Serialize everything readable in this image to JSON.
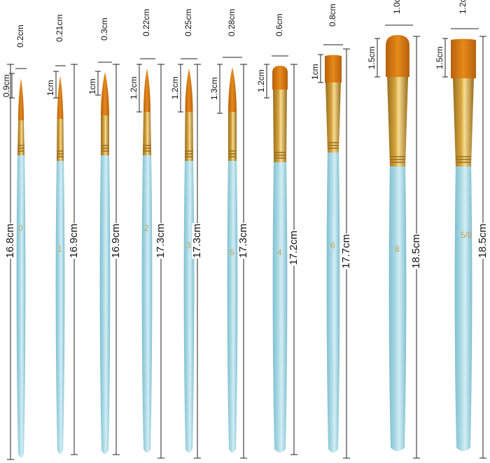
{
  "brushes": [
    {
      "id": "1",
      "handle_number": "0",
      "tip_width": "0.2cm",
      "tip_length": "0.9cm",
      "total_length": "16.8cm",
      "shape": "round"
    },
    {
      "id": "2",
      "handle_number": "1",
      "tip_width": "0.21cm",
      "tip_length": "1cm",
      "total_length": "16.9cm",
      "shape": "round"
    },
    {
      "id": "3",
      "handle_number": "",
      "tip_width": "0.3cm",
      "tip_length": "1cm",
      "total_length": "16.9cm",
      "shape": "round"
    },
    {
      "id": "4",
      "handle_number": "2",
      "tip_width": "0.22cm",
      "tip_length": "1.2cm",
      "total_length": "17.3cm",
      "shape": "round"
    },
    {
      "id": "5",
      "handle_number": "3",
      "tip_width": "0.25cm",
      "tip_length": "1.2cm",
      "total_length": "17.3cm",
      "shape": "round"
    },
    {
      "id": "6",
      "handle_number": "5",
      "tip_width": "0.28cm",
      "tip_length": "1.3cm",
      "total_length": "17.3cm",
      "shape": "round"
    },
    {
      "id": "7",
      "handle_number": "4",
      "tip_width": "0.6cm",
      "tip_length": "1.2cm",
      "total_length": "17.2cm",
      "shape": "filbert"
    },
    {
      "id": "8",
      "handle_number": "6",
      "tip_width": "0.8cm",
      "tip_length": "1cm",
      "total_length": "17.7cm",
      "shape": "flat"
    },
    {
      "id": "9",
      "handle_number": "8",
      "tip_width": "1.0cm",
      "tip_length": "1.5cm",
      "total_length": "18.5cm",
      "shape": "filbert"
    },
    {
      "id": "10",
      "handle_number": "5/8",
      "tip_width": "1.2cm",
      "tip_length": "1.5cm",
      "total_length": "18.5cm",
      "shape": "flat"
    }
  ],
  "colors": {
    "handle": "#a9d8e4",
    "handle_shade": "#7fbfd0",
    "ferrule": "#d6a640",
    "ferrule_dark": "#9a6d1c",
    "bristle": "#e58a1a",
    "bristle_dark": "#b8600c",
    "line": "#222222",
    "number": "#c4a35a"
  }
}
